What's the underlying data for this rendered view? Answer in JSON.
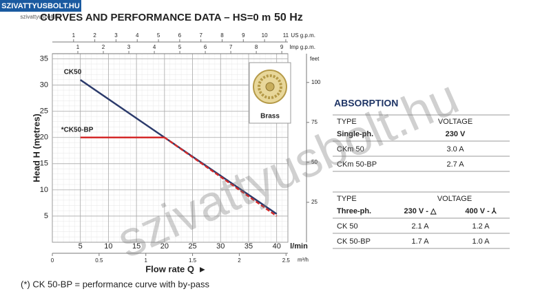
{
  "logo": {
    "name": "SZIVATTYUSBOLT.HU",
    "url": "szivattyusbolt.hu"
  },
  "watermark": "szivattyusbolt.hu",
  "chart_data": {
    "type": "line",
    "title": "CURVES AND PERFORMANCE DATA  –  HS=0 m",
    "frequency": "50 Hz",
    "xlabel": "Flow rate Q",
    "ylabel": "Head H (metres)",
    "x_unit": "l/min",
    "xlim": [
      0,
      42
    ],
    "xticks": [
      5,
      10,
      15,
      20,
      25,
      30,
      35,
      40
    ],
    "ylim": [
      0,
      36
    ],
    "yticks": [
      5,
      10,
      15,
      20,
      25,
      30,
      35
    ],
    "grid": true,
    "series": [
      {
        "name": "CK50",
        "color": "#2b3a6b",
        "x": [
          5,
          20,
          40
        ],
        "values": [
          31,
          20,
          5.4
        ]
      },
      {
        "name": "*CK50-BP",
        "color": "#d42a2a",
        "x": [
          5,
          20,
          40
        ],
        "values": [
          20,
          20,
          5
        ]
      }
    ],
    "us_gpm": {
      "label": "US g.p.m.",
      "xlim": [
        0,
        11.1
      ],
      "xticks": [
        1,
        2,
        3,
        4,
        5,
        6,
        7,
        8,
        9,
        10,
        11
      ]
    },
    "imp_gpm": {
      "label": "Imp g.p.m.",
      "xlim": [
        0,
        9.24
      ],
      "xticks": [
        1,
        2,
        3,
        4,
        5,
        6,
        7,
        8,
        9
      ]
    },
    "m3h": {
      "label": "m³/h",
      "xlim": [
        0,
        2.52
      ],
      "xticks": [
        0,
        0.5,
        1,
        1.5,
        2,
        2.5
      ]
    },
    "feet": {
      "label": "feet",
      "ylim": [
        0,
        118
      ],
      "yticks": [
        25,
        50,
        75,
        100
      ]
    },
    "image_label": "Brass",
    "note": "(*) CK 50-BP = performance curve with by-pass"
  },
  "absorption": {
    "title": "ABSORPTION",
    "single": {
      "header": [
        "TYPE",
        "VOLTAGE"
      ],
      "subheader": [
        "Single-ph.",
        "230 V"
      ],
      "rows": [
        [
          "CKm 50",
          "3.0 A"
        ],
        [
          "CKm 50-BP",
          "2.7 A"
        ]
      ]
    },
    "three": {
      "header": [
        "TYPE",
        "VOLTAGE"
      ],
      "subheader": [
        "Three-ph.",
        "230 V - △",
        "400 V - ⅄"
      ],
      "rows": [
        [
          "CK 50",
          "2.1 A",
          "1.2 A"
        ],
        [
          "CK 50-BP",
          "1.7 A",
          "1.0 A"
        ]
      ]
    }
  }
}
